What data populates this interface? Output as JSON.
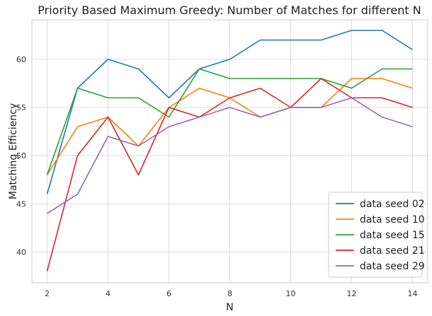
{
  "chart_data": {
    "type": "line",
    "title": "Priority Based Maximum Greedy: Number of Matches for different N",
    "xlabel": "N",
    "ylabel": "Matching Efficiency",
    "x": [
      2,
      3,
      4,
      5,
      6,
      7,
      8,
      9,
      10,
      11,
      12,
      13,
      14
    ],
    "xlim": [
      1.5,
      14.5
    ],
    "ylim": [
      36.8,
      64.1
    ],
    "xticks": [
      2,
      4,
      6,
      8,
      10,
      12,
      14
    ],
    "yticks": [
      40,
      45,
      50,
      55,
      60
    ],
    "grid": true,
    "legend_position": "bottom-right",
    "series": [
      {
        "name": "data seed 02",
        "color": "#1f77b4",
        "values": [
          46,
          57,
          60,
          59,
          56,
          59,
          60,
          62,
          62,
          62,
          63,
          63,
          61
        ]
      },
      {
        "name": "data seed 10",
        "color": "#ff7f0e",
        "values": [
          48,
          53,
          54,
          51,
          55,
          57,
          56,
          54,
          55,
          55,
          58,
          58,
          57
        ]
      },
      {
        "name": "data seed 15",
        "color": "#2ca02c",
        "values": [
          48,
          57,
          56,
          56,
          54,
          59,
          58,
          58,
          58,
          58,
          57,
          59,
          59
        ]
      },
      {
        "name": "data seed 21",
        "color": "#d62728",
        "values": [
          38,
          50,
          54,
          48,
          55,
          54,
          56,
          57,
          55,
          58,
          56,
          56,
          55
        ]
      },
      {
        "name": "data seed 29",
        "color": "#9467bd",
        "values": [
          44,
          46,
          52,
          51,
          53,
          54,
          55,
          54,
          55,
          55,
          56,
          54,
          53
        ]
      }
    ]
  }
}
